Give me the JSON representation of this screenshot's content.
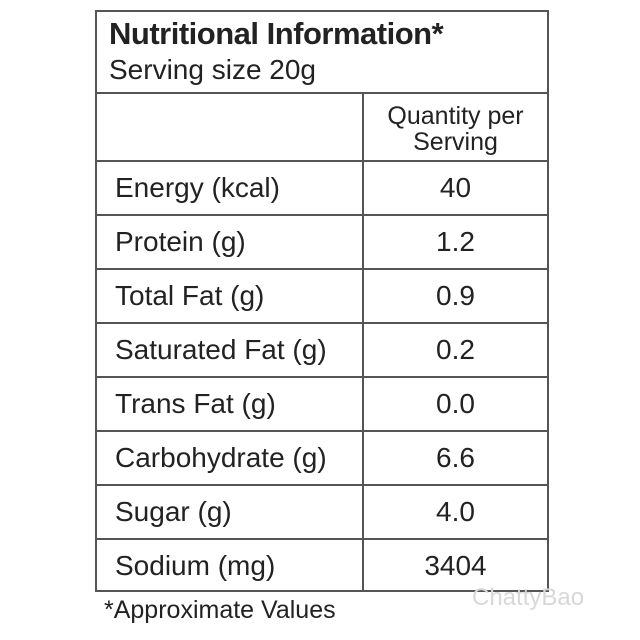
{
  "header": {
    "title": "Nutritional Information*",
    "serving": "Serving size 20g"
  },
  "table": {
    "column_header": "Quantity per Serving",
    "rows": [
      [
        "Energy (kcal)",
        "40"
      ],
      [
        "Protein (g)",
        "1.2"
      ],
      [
        "Total Fat (g)",
        "0.9"
      ],
      [
        "Saturated Fat (g)",
        "0.2"
      ],
      [
        "Trans Fat (g)",
        "0.0"
      ],
      [
        "Carbohydrate (g)",
        "6.6"
      ],
      [
        "Sugar (g)",
        "4.0"
      ],
      [
        "Sodium (mg)",
        "3404"
      ]
    ]
  },
  "footnote": "*Approximate Values",
  "watermark": "ChattyBao"
}
